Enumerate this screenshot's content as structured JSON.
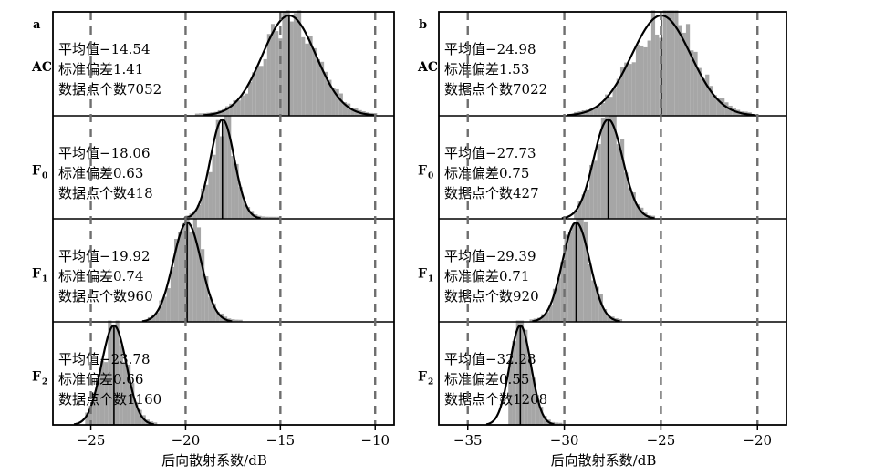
{
  "chart_data": [
    {
      "type": "histogram",
      "panel_label": "a",
      "xlabel": "后向散射系数/dB",
      "xlim": [
        -27,
        -9
      ],
      "xticks": [
        -25,
        -20,
        -15,
        -10
      ],
      "xtick_labels": [
        "−25",
        "−20",
        "−15",
        "−10"
      ],
      "reference_lines": [
        -25,
        -20,
        -15,
        -10
      ],
      "rows": [
        {
          "label": "AC",
          "sub": "",
          "stats": [
            "平均值−14.54",
            "标准偏差1.41",
            "数据点个数7052"
          ],
          "mean": -14.54,
          "std": 1.41,
          "count": 7052,
          "range": [
            -19.5,
            -10.0
          ]
        },
        {
          "label": "F",
          "sub": "0",
          "stats": [
            "平均值−18.06",
            "标准偏差0.63",
            "数据点个数418"
          ],
          "mean": -18.06,
          "std": 0.63,
          "count": 418,
          "range": [
            -20.0,
            -15.2
          ]
        },
        {
          "label": "F",
          "sub": "1",
          "stats": [
            "平均值−19.92",
            "标准偏差0.74",
            "数据点个数960"
          ],
          "mean": -19.92,
          "std": 0.74,
          "count": 960,
          "range": [
            -22.0,
            -17.2
          ]
        },
        {
          "label": "F",
          "sub": "2",
          "stats": [
            "平均值−23.78",
            "标准偏差0.66",
            "数据点个数1160"
          ],
          "mean": -23.78,
          "std": 0.66,
          "count": 1160,
          "range": [
            -25.3,
            -21.6
          ]
        }
      ]
    },
    {
      "type": "histogram",
      "panel_label": "b",
      "xlabel": "后向散射系数/dB",
      "xlim": [
        -36.5,
        -18.5
      ],
      "xticks": [
        -35,
        -30,
        -25,
        -20
      ],
      "xtick_labels": [
        "−35",
        "−30",
        "−25",
        "−20"
      ],
      "reference_lines": [
        -35,
        -30,
        -25,
        -20
      ],
      "rows": [
        {
          "label": "AC",
          "sub": "",
          "stats": [
            "平均值−24.98",
            "标准偏差1.53",
            "数据点个数7022"
          ],
          "mean": -24.98,
          "std": 1.53,
          "count": 7022,
          "range": [
            -29.5,
            -20.5
          ]
        },
        {
          "label": "F",
          "sub": "0",
          "stats": [
            "平均值−27.73",
            "标准偏差0.75",
            "数据点个数427"
          ],
          "mean": -27.73,
          "std": 0.75,
          "count": 427,
          "range": [
            -29.5,
            -25.5
          ]
        },
        {
          "label": "F",
          "sub": "1",
          "stats": [
            "平均值−29.39",
            "标准偏差0.71",
            "数据点个数920"
          ],
          "mean": -29.39,
          "std": 0.71,
          "count": 920,
          "range": [
            -31.8,
            -27.2
          ]
        },
        {
          "label": "F",
          "sub": "2",
          "stats": [
            "平均值−32.28",
            "标准偏差0.55",
            "数据点个数1208"
          ],
          "mean": -32.28,
          "std": 0.55,
          "count": 1208,
          "range": [
            -32.9,
            -30.2
          ]
        }
      ]
    }
  ],
  "colors": {
    "histogram": "#a6a6a6",
    "curve": "#000000",
    "reference_line": "#6e6e6e"
  }
}
